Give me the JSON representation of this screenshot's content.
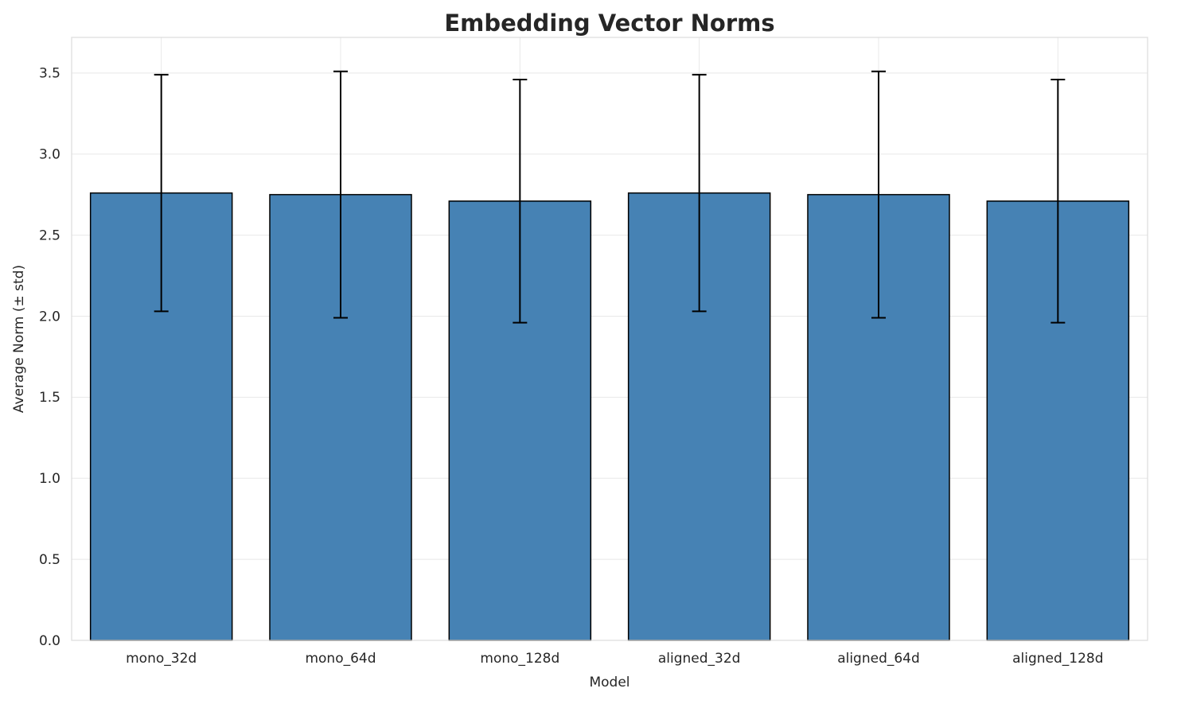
{
  "chart_data": {
    "type": "bar",
    "title": "Embedding Vector Norms",
    "xlabel": "Model",
    "ylabel": "Average Norm (± std)",
    "categories": [
      "mono_32d",
      "mono_64d",
      "mono_128d",
      "aligned_32d",
      "aligned_64d",
      "aligned_128d"
    ],
    "values": [
      2.76,
      2.75,
      2.71,
      2.76,
      2.75,
      2.71
    ],
    "errors": [
      0.73,
      0.76,
      0.75,
      0.73,
      0.76,
      0.75
    ],
    "yticks": [
      0.0,
      0.5,
      1.0,
      1.5,
      2.0,
      2.5,
      3.0,
      3.5
    ],
    "ylim": [
      0,
      3.72
    ],
    "grid": true,
    "legend_position": "none",
    "bar_color": "#4682b4",
    "bar_edge_color": "#000000",
    "error_bar_color": "#000000",
    "grid_color": "#e8e8e8",
    "spine_color": "#dcdcdc",
    "text_color": "#262626"
  }
}
